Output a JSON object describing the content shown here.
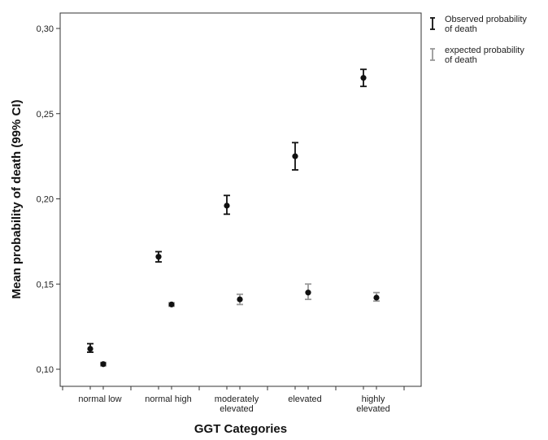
{
  "chart_data": {
    "type": "scatter",
    "title": "",
    "xlabel": "GGT Categories",
    "ylabel": "Mean probability of death (99% CI)",
    "ylim": [
      0.09,
      0.31
    ],
    "yticks": [
      "0,10",
      "0,15",
      "0,20",
      "0,25",
      "0,30"
    ],
    "ytick_values": [
      0.1,
      0.15,
      0.2,
      0.25,
      0.3
    ],
    "categories": [
      [
        "normal low"
      ],
      [
        "normal high"
      ],
      [
        "moderately",
        "elevated"
      ],
      [
        "elevated"
      ],
      [
        "highly",
        "elevated"
      ]
    ],
    "grid": false,
    "legend_position": "top-right outside plot",
    "series": [
      {
        "name": "Observed probability of death",
        "legend_lines": [
          "Observed probability",
          "of death"
        ],
        "color": "#111111",
        "mean": [
          0.112,
          0.166,
          0.196,
          0.225,
          0.271
        ],
        "lower": [
          0.11,
          0.163,
          0.191,
          0.217,
          0.266
        ],
        "upper": [
          0.115,
          0.169,
          0.202,
          0.233,
          0.276
        ]
      },
      {
        "name": "expected probability of death",
        "legend_lines": [
          "expected probability",
          "of death"
        ],
        "color": "#999999",
        "mean": [
          0.103,
          0.138,
          0.141,
          0.145,
          0.142
        ],
        "lower": [
          0.102,
          0.137,
          0.138,
          0.141,
          0.14
        ],
        "upper": [
          0.104,
          0.139,
          0.144,
          0.15,
          0.145
        ]
      }
    ]
  }
}
